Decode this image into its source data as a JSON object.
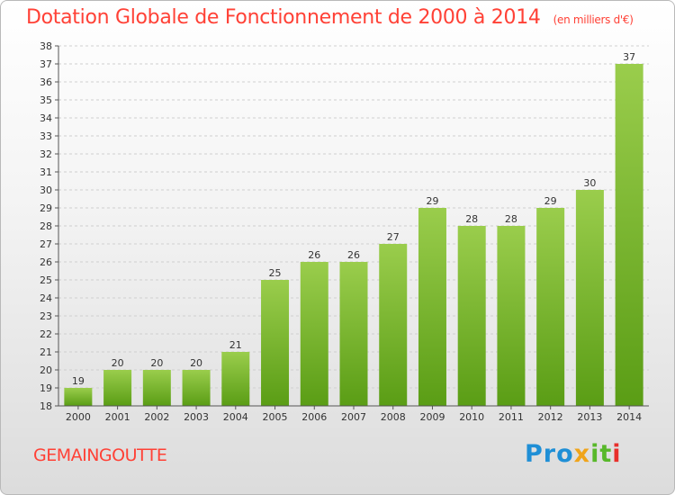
{
  "title": "Dotation Globale de Fonctionnement de 2000 à 2014",
  "subtitle": "(en milliers d'€)",
  "commune": "GEMAINGOUTTE",
  "logo": {
    "part1": "Pro",
    "part2": "x",
    "part3": "it",
    "part4": "i"
  },
  "colors": {
    "title": "#ff4136",
    "bar_top": "#9acd4c",
    "bar_bottom": "#5a9d15",
    "grid": "#cfcfcf"
  },
  "chart_data": {
    "type": "bar",
    "title": "Dotation Globale de Fonctionnement de 2000 à 2014",
    "subtitle": "(en milliers d'€)",
    "categories": [
      "2000",
      "2001",
      "2002",
      "2003",
      "2004",
      "2005",
      "2006",
      "2007",
      "2008",
      "2009",
      "2010",
      "2011",
      "2012",
      "2013",
      "2014"
    ],
    "values": [
      19,
      20,
      20,
      20,
      21,
      25,
      26,
      26,
      27,
      29,
      28,
      28,
      29,
      30,
      37
    ],
    "ylim": [
      18,
      38
    ],
    "yticks": [
      18,
      19,
      20,
      21,
      22,
      23,
      24,
      25,
      26,
      27,
      28,
      29,
      30,
      31,
      32,
      33,
      34,
      35,
      36,
      37,
      38
    ],
    "grid": true
  }
}
